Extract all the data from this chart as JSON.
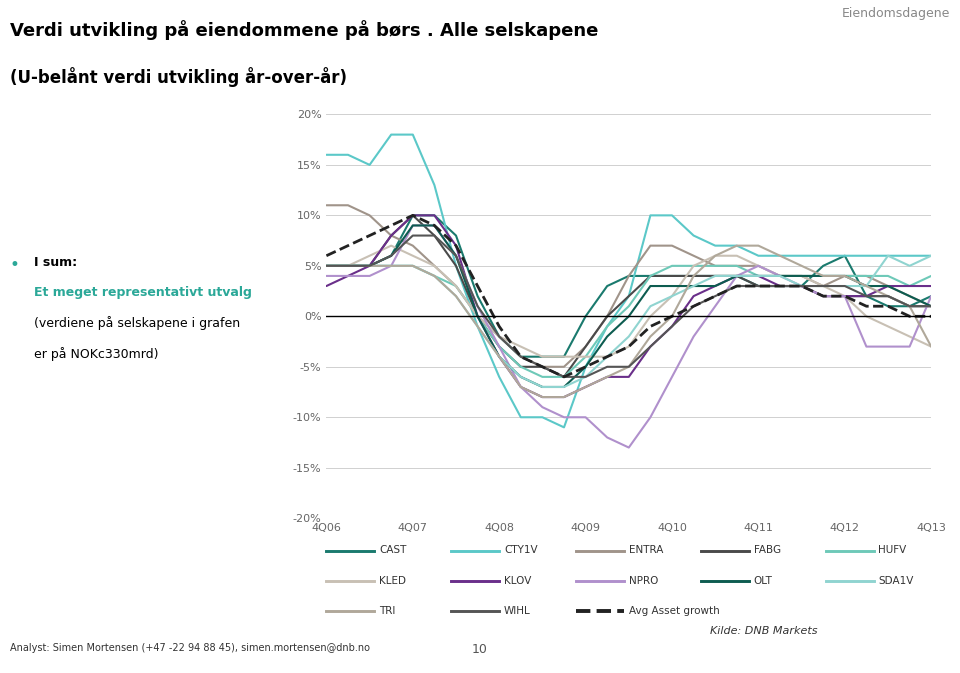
{
  "title_line1": "Verdi utvikling på eiendommene på børs . Alle selskapene",
  "title_line2": "(U-belånt verdi utvikling år-over-år)",
  "header_right": "Eiendomsdagene",
  "x_labels": [
    "4Q06",
    "4Q07",
    "4Q08",
    "4Q09",
    "4Q10",
    "4Q11",
    "4Q12",
    "4Q13"
  ],
  "x_ticks": [
    0,
    4,
    8,
    12,
    16,
    20,
    24,
    28
  ],
  "n_points": 29,
  "ylim": [
    -0.2,
    0.2
  ],
  "yticks": [
    -0.2,
    -0.15,
    -0.1,
    -0.05,
    0.0,
    0.05,
    0.1,
    0.15,
    0.2
  ],
  "ytick_labels": [
    "-20%",
    "-15%",
    "-10%",
    "-5%",
    "0%",
    "5%",
    "10%",
    "15%",
    "20%"
  ],
  "analyst_text": "Analyst: Simen Mortensen (+47 -22 94 88 45), simen.mortensen@dnb.no",
  "kilde_text": "Kilde: DNB Markets",
  "page_number": "10",
  "series": {
    "CAST": {
      "color": "#1a7a6e",
      "linewidth": 1.5,
      "linestyle": "-",
      "data": [
        0.05,
        0.05,
        0.05,
        0.06,
        0.1,
        0.1,
        0.08,
        0.02,
        -0.02,
        -0.04,
        -0.04,
        -0.04,
        0.0,
        0.03,
        0.04,
        0.04,
        0.04,
        0.04,
        0.04,
        0.04,
        0.03,
        0.03,
        0.03,
        0.05,
        0.06,
        0.02,
        0.01,
        0.01,
        0.02
      ]
    },
    "CTY1V": {
      "color": "#5bc8c8",
      "linewidth": 1.5,
      "linestyle": "-",
      "data": [
        0.16,
        0.16,
        0.15,
        0.18,
        0.18,
        0.13,
        0.05,
        -0.01,
        -0.06,
        -0.1,
        -0.1,
        -0.11,
        -0.05,
        -0.01,
        0.02,
        0.1,
        0.1,
        0.08,
        0.07,
        0.07,
        0.06,
        0.06,
        0.06,
        0.06,
        0.06,
        0.06,
        0.06,
        0.06,
        0.06
      ]
    },
    "ENTRA": {
      "color": "#a0948a",
      "linewidth": 1.5,
      "linestyle": "-",
      "data": [
        0.11,
        0.11,
        0.1,
        0.08,
        0.07,
        0.05,
        0.03,
        0.0,
        -0.02,
        -0.04,
        -0.05,
        -0.05,
        -0.03,
        0.0,
        0.04,
        0.07,
        0.07,
        0.06,
        0.05,
        0.05,
        0.05,
        0.04,
        0.04,
        0.03,
        0.04,
        0.04,
        0.03,
        0.02,
        0.01
      ]
    },
    "FABG": {
      "color": "#4a4a4a",
      "linewidth": 1.5,
      "linestyle": "-",
      "data": [
        0.05,
        0.05,
        0.05,
        0.08,
        0.1,
        0.08,
        0.05,
        0.0,
        -0.03,
        -0.05,
        -0.05,
        -0.06,
        -0.03,
        0.0,
        0.02,
        0.04,
        0.04,
        0.04,
        0.04,
        0.04,
        0.03,
        0.03,
        0.03,
        0.02,
        0.02,
        0.02,
        0.02,
        0.01,
        0.01
      ]
    },
    "HUFV": {
      "color": "#6ec9b8",
      "linewidth": 1.5,
      "linestyle": "-",
      "data": [
        0.05,
        0.05,
        0.05,
        0.05,
        0.05,
        0.04,
        0.03,
        0.0,
        -0.03,
        -0.05,
        -0.06,
        -0.06,
        -0.04,
        -0.01,
        0.01,
        0.04,
        0.05,
        0.05,
        0.05,
        0.05,
        0.04,
        0.04,
        0.04,
        0.04,
        0.04,
        0.04,
        0.04,
        0.03,
        0.04
      ]
    },
    "KLED": {
      "color": "#c8c0b4",
      "linewidth": 1.5,
      "linestyle": "-",
      "data": [
        0.05,
        0.05,
        0.06,
        0.07,
        0.06,
        0.05,
        0.03,
        0.0,
        -0.02,
        -0.03,
        -0.04,
        -0.04,
        -0.04,
        -0.04,
        -0.03,
        0.0,
        0.02,
        0.05,
        0.06,
        0.06,
        0.05,
        0.04,
        0.04,
        0.03,
        0.02,
        0.0,
        -0.01,
        -0.02,
        -0.03
      ]
    },
    "KLOV": {
      "color": "#6a2f8a",
      "linewidth": 1.5,
      "linestyle": "-",
      "data": [
        0.03,
        0.04,
        0.05,
        0.08,
        0.1,
        0.1,
        0.07,
        0.0,
        -0.04,
        -0.07,
        -0.08,
        -0.08,
        -0.07,
        -0.06,
        -0.06,
        -0.03,
        -0.01,
        0.02,
        0.03,
        0.04,
        0.04,
        0.03,
        0.03,
        0.02,
        0.02,
        0.02,
        0.03,
        0.03,
        0.03
      ]
    },
    "NPRO": {
      "color": "#b090cc",
      "linewidth": 1.5,
      "linestyle": "-",
      "data": [
        0.04,
        0.04,
        0.04,
        0.05,
        0.09,
        0.09,
        0.06,
        0.01,
        -0.03,
        -0.07,
        -0.09,
        -0.1,
        -0.1,
        -0.12,
        -0.13,
        -0.1,
        -0.06,
        -0.02,
        0.01,
        0.04,
        0.05,
        0.04,
        0.03,
        0.02,
        0.02,
        -0.03,
        -0.03,
        -0.03,
        0.02
      ]
    },
    "OLT": {
      "color": "#0d5c50",
      "linewidth": 1.5,
      "linestyle": "-",
      "data": [
        0.05,
        0.05,
        0.05,
        0.06,
        0.09,
        0.09,
        0.06,
        0.0,
        -0.04,
        -0.06,
        -0.07,
        -0.07,
        -0.05,
        -0.02,
        0.0,
        0.03,
        0.03,
        0.03,
        0.03,
        0.04,
        0.04,
        0.04,
        0.04,
        0.04,
        0.04,
        0.03,
        0.03,
        0.02,
        0.01
      ]
    },
    "SDA1V": {
      "color": "#90d4d0",
      "linewidth": 1.5,
      "linestyle": "-",
      "data": [
        0.05,
        0.05,
        0.05,
        0.05,
        0.05,
        0.04,
        0.02,
        -0.01,
        -0.04,
        -0.06,
        -0.07,
        -0.07,
        -0.06,
        -0.04,
        -0.02,
        0.01,
        0.02,
        0.03,
        0.04,
        0.04,
        0.04,
        0.04,
        0.03,
        0.03,
        0.03,
        0.03,
        0.06,
        0.05,
        0.06
      ]
    },
    "TRI": {
      "color": "#b0a89a",
      "linewidth": 1.5,
      "linestyle": "-",
      "data": [
        0.05,
        0.05,
        0.05,
        0.05,
        0.05,
        0.04,
        0.02,
        -0.01,
        -0.04,
        -0.07,
        -0.08,
        -0.08,
        -0.07,
        -0.06,
        -0.05,
        -0.02,
        0.0,
        0.04,
        0.06,
        0.07,
        0.07,
        0.06,
        0.05,
        0.04,
        0.04,
        0.03,
        0.02,
        0.01,
        -0.03
      ]
    },
    "WIHL": {
      "color": "#555555",
      "linewidth": 1.5,
      "linestyle": "-",
      "data": [
        0.05,
        0.05,
        0.05,
        0.06,
        0.08,
        0.08,
        0.06,
        0.01,
        -0.02,
        -0.04,
        -0.05,
        -0.06,
        -0.06,
        -0.05,
        -0.05,
        -0.03,
        -0.01,
        0.01,
        0.02,
        0.03,
        0.03,
        0.03,
        0.03,
        0.03,
        0.03,
        0.02,
        0.02,
        0.01,
        0.01
      ]
    },
    "Avg Asset growth": {
      "color": "#222222",
      "linewidth": 2.0,
      "linestyle": "--",
      "data": [
        0.06,
        0.07,
        0.08,
        0.09,
        0.1,
        0.09,
        0.07,
        0.03,
        -0.01,
        -0.04,
        -0.05,
        -0.06,
        -0.05,
        -0.04,
        -0.03,
        -0.01,
        0.0,
        0.01,
        0.02,
        0.03,
        0.03,
        0.03,
        0.03,
        0.02,
        0.02,
        0.01,
        0.01,
        0.0,
        0.0
      ]
    }
  },
  "legend_items": [
    {
      "name": "CAST",
      "color": "#1a7a6e",
      "linestyle": "-",
      "linewidth": 1.5
    },
    {
      "name": "CTY1V",
      "color": "#5bc8c8",
      "linestyle": "-",
      "linewidth": 1.5
    },
    {
      "name": "ENTRA",
      "color": "#a0948a",
      "linestyle": "-",
      "linewidth": 1.5
    },
    {
      "name": "FABG",
      "color": "#4a4a4a",
      "linestyle": "-",
      "linewidth": 1.5
    },
    {
      "name": "HUFV",
      "color": "#6ec9b8",
      "linestyle": "-",
      "linewidth": 1.5
    },
    {
      "name": "KLED",
      "color": "#c8c0b4",
      "linestyle": "-",
      "linewidth": 1.5
    },
    {
      "name": "KLOV",
      "color": "#6a2f8a",
      "linestyle": "-",
      "linewidth": 1.5
    },
    {
      "name": "NPRO",
      "color": "#b090cc",
      "linestyle": "-",
      "linewidth": 1.5
    },
    {
      "name": "OLT",
      "color": "#0d5c50",
      "linestyle": "-",
      "linewidth": 1.5
    },
    {
      "name": "SDA1V",
      "color": "#90d4d0",
      "linestyle": "-",
      "linewidth": 1.5
    },
    {
      "name": "TRI",
      "color": "#b0a89a",
      "linestyle": "-",
      "linewidth": 1.5
    },
    {
      "name": "WIHL",
      "color": "#555555",
      "linestyle": "-",
      "linewidth": 1.5
    },
    {
      "name": "Avg Asset growth",
      "color": "#222222",
      "linestyle": "--",
      "linewidth": 2.0
    }
  ],
  "background_color": "#ffffff",
  "grid_color": "#d0d0d0",
  "teal_accent": "#2ba898",
  "bullet_color": "#2ba898"
}
